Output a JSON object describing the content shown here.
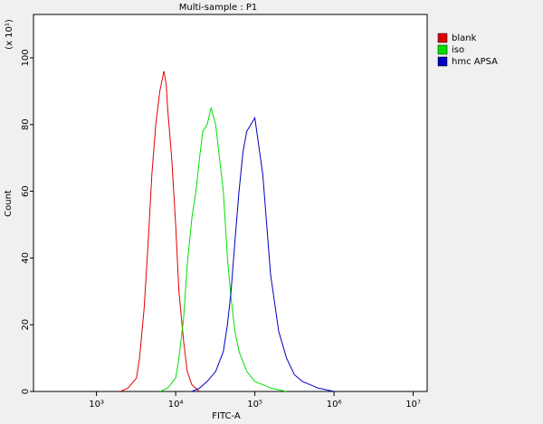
{
  "chart_data": {
    "type": "line",
    "title": "Multi-sample : P1",
    "x_label": "FITC-A",
    "y_label": "Count",
    "y_multiplier": "(x 10¹)",
    "log_x": true,
    "xlim": [
      160,
      15000000
    ],
    "ylim": [
      0,
      113
    ],
    "xticks": [
      {
        "value": 1000,
        "label": "10³"
      },
      {
        "value": 10000,
        "label": "10⁴"
      },
      {
        "value": 100000,
        "label": "10⁵"
      },
      {
        "value": 1000000,
        "label": "10⁶"
      },
      {
        "value": 10000000,
        "label": "10⁷"
      }
    ],
    "yticks": [
      0,
      20,
      40,
      60,
      80,
      100
    ],
    "legend": "upper right",
    "series": [
      {
        "name": "blank",
        "color": "#e00000",
        "x": [
          2000,
          2500,
          3200,
          3500,
          4000,
          4500,
          5000,
          5600,
          6300,
          7100,
          7600,
          7900,
          8900,
          10000,
          11000,
          12600,
          14000,
          16000,
          20000
        ],
        "values": [
          0,
          1,
          4,
          10,
          25,
          45,
          65,
          80,
          90,
          96,
          92,
          85,
          70,
          50,
          30,
          15,
          6,
          2,
          0
        ]
      },
      {
        "name": "iso",
        "color": "#00e000",
        "x": [
          6300,
          7900,
          10000,
          11000,
          12600,
          14000,
          16000,
          18000,
          20000,
          22000,
          25000,
          28000,
          32000,
          35000,
          40000,
          45000,
          50000,
          56000,
          63000,
          79000,
          100000,
          160000,
          250000
        ],
        "values": [
          0,
          1,
          4,
          10,
          22,
          38,
          52,
          60,
          70,
          78,
          80,
          85,
          80,
          72,
          60,
          40,
          28,
          18,
          12,
          6,
          3,
          1,
          0
        ]
      },
      {
        "name": "hmc APSA",
        "color": "#0000c0",
        "x": [
          16000,
          20000,
          25000,
          32000,
          40000,
          45000,
          50000,
          56000,
          63000,
          71000,
          79000,
          89000,
          100000,
          110000,
          126000,
          141000,
          158000,
          200000,
          251000,
          316000,
          398000,
          631000,
          1000000
        ],
        "values": [
          0,
          1,
          3,
          6,
          12,
          20,
          30,
          45,
          60,
          72,
          78,
          80,
          82,
          75,
          65,
          50,
          35,
          18,
          10,
          5,
          3,
          1,
          0
        ]
      }
    ]
  }
}
